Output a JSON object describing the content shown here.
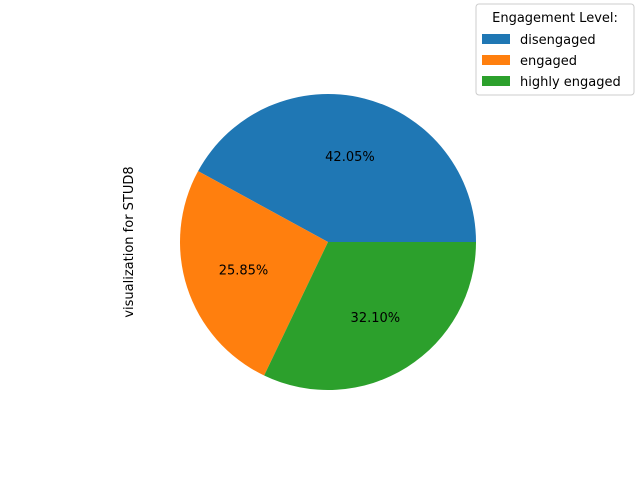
{
  "chart_data": {
    "type": "pie",
    "ylabel": "visualization for STUD8",
    "legend": {
      "title": "Engagement Level:",
      "placement": "top-right"
    },
    "slices": [
      {
        "label": "disengaged",
        "value": 42.05,
        "display": "42.05%",
        "color": "#1f77b4"
      },
      {
        "label": "engaged",
        "value": 25.85,
        "display": "25.85%",
        "color": "#ff7f0e"
      },
      {
        "label": "highly engaged",
        "value": 32.1,
        "display": "32.10%",
        "color": "#2ca02c"
      }
    ],
    "start_angle": 0,
    "direction": "counterclockwise"
  }
}
